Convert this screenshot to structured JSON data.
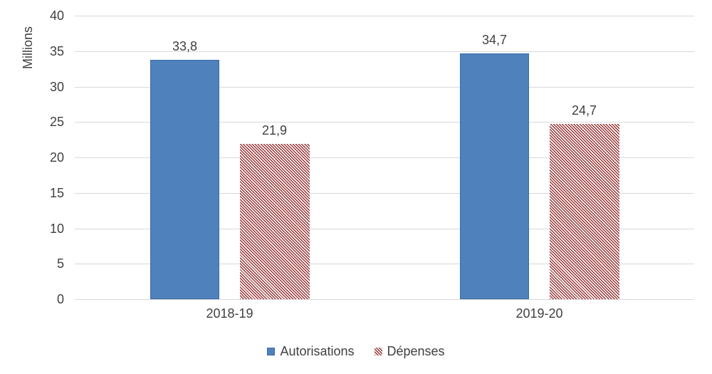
{
  "chart_data": {
    "type": "bar",
    "title": "",
    "categories": [
      "2018-19",
      "2019-20"
    ],
    "series": [
      {
        "name": "Autorisations",
        "values": [
          33.8,
          34.7
        ],
        "data_labels": [
          "33,8",
          "34,7"
        ],
        "color": "#4f81bd",
        "border_color": "#3a6ca6",
        "pattern": "solid"
      },
      {
        "name": "Dépenses",
        "values": [
          21.9,
          24.7
        ],
        "data_labels": [
          "21,9",
          "24,7"
        ],
        "color": "#963634",
        "pattern": "diagonal-stripe"
      }
    ],
    "xlabel": "",
    "ylabel": "Millions",
    "ylim": [
      0,
      40
    ],
    "ytick_step": 5,
    "yticks": [
      40,
      35,
      30,
      25,
      20,
      15,
      10,
      5,
      0
    ],
    "grid": true,
    "gridline_color": "#d9d9d9",
    "text_color": "#404040",
    "background_color": "#ffffff",
    "legend_position": "bottom"
  }
}
